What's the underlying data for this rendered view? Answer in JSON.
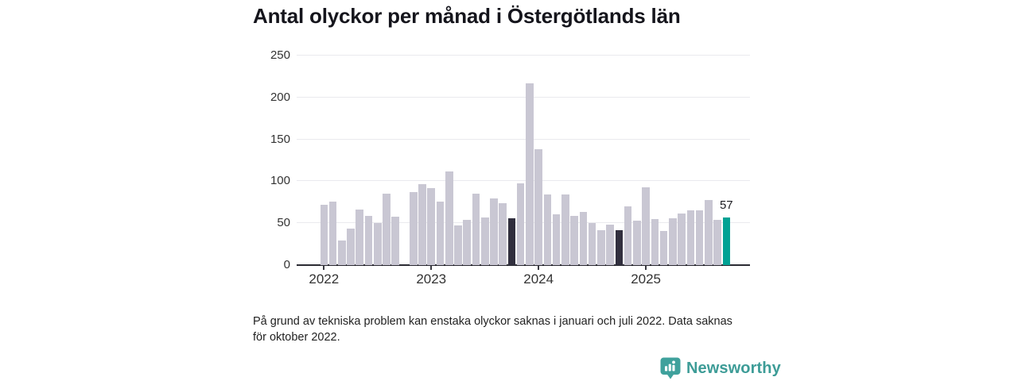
{
  "title": "Antal olyckor per månad i Östergötlands län",
  "footnote": "På grund av tekniska problem kan enstaka olyckor saknas i januari och juli 2022. Data saknas för oktober 2022.",
  "logo": {
    "text": "Newsworthy",
    "icon": "newsworthy-speech-bubble-bar-chart-icon",
    "color": "#3d9c97"
  },
  "chart_data": {
    "type": "bar",
    "title": "Antal olyckor per månad i Östergötlands län",
    "xlabel": "",
    "ylabel": "",
    "ylim": [
      0,
      250
    ],
    "y_ticks": [
      0,
      50,
      100,
      150,
      200,
      250
    ],
    "grid": "horizontal",
    "x_year_tick_labels": [
      "2022",
      "2023",
      "2024",
      "2025"
    ],
    "year_tick_slot_indexes": [
      0,
      12,
      24,
      36
    ],
    "missing_months": [
      "2022-10"
    ],
    "annotation": {
      "month": "2025-10",
      "text": "57"
    },
    "colors": {
      "light": "#c9c7d3",
      "dark": "#312f3e",
      "accent": "#00a294"
    },
    "months": [
      {
        "month": "2022-01",
        "value": 72,
        "color": "light"
      },
      {
        "month": "2022-02",
        "value": 76,
        "color": "light"
      },
      {
        "month": "2022-03",
        "value": 29,
        "color": "light"
      },
      {
        "month": "2022-04",
        "value": 44,
        "color": "light"
      },
      {
        "month": "2022-05",
        "value": 66,
        "color": "light"
      },
      {
        "month": "2022-06",
        "value": 59,
        "color": "light"
      },
      {
        "month": "2022-07",
        "value": 50,
        "color": "light"
      },
      {
        "month": "2022-08",
        "value": 85,
        "color": "light"
      },
      {
        "month": "2022-09",
        "value": 58,
        "color": "light"
      },
      {
        "month": "2022-10",
        "value": null,
        "color": "light"
      },
      {
        "month": "2022-11",
        "value": 87,
        "color": "light"
      },
      {
        "month": "2022-12",
        "value": 97,
        "color": "light"
      },
      {
        "month": "2023-01",
        "value": 92,
        "color": "light"
      },
      {
        "month": "2023-02",
        "value": 76,
        "color": "light"
      },
      {
        "month": "2023-03",
        "value": 112,
        "color": "light"
      },
      {
        "month": "2023-04",
        "value": 47,
        "color": "light"
      },
      {
        "month": "2023-05",
        "value": 54,
        "color": "light"
      },
      {
        "month": "2023-06",
        "value": 85,
        "color": "light"
      },
      {
        "month": "2023-07",
        "value": 57,
        "color": "light"
      },
      {
        "month": "2023-08",
        "value": 80,
        "color": "light"
      },
      {
        "month": "2023-09",
        "value": 74,
        "color": "light"
      },
      {
        "month": "2023-10",
        "value": 56,
        "color": "dark"
      },
      {
        "month": "2023-11",
        "value": 98,
        "color": "light"
      },
      {
        "month": "2023-12",
        "value": 217,
        "color": "light"
      },
      {
        "month": "2024-01",
        "value": 138,
        "color": "light"
      },
      {
        "month": "2024-02",
        "value": 84,
        "color": "light"
      },
      {
        "month": "2024-03",
        "value": 61,
        "color": "light"
      },
      {
        "month": "2024-04",
        "value": 84,
        "color": "light"
      },
      {
        "month": "2024-05",
        "value": 59,
        "color": "light"
      },
      {
        "month": "2024-06",
        "value": 63,
        "color": "light"
      },
      {
        "month": "2024-07",
        "value": 50,
        "color": "light"
      },
      {
        "month": "2024-08",
        "value": 42,
        "color": "light"
      },
      {
        "month": "2024-09",
        "value": 48,
        "color": "light"
      },
      {
        "month": "2024-10",
        "value": 42,
        "color": "dark"
      },
      {
        "month": "2024-11",
        "value": 70,
        "color": "light"
      },
      {
        "month": "2024-12",
        "value": 53,
        "color": "light"
      },
      {
        "month": "2025-01",
        "value": 93,
        "color": "light"
      },
      {
        "month": "2025-02",
        "value": 55,
        "color": "light"
      },
      {
        "month": "2025-03",
        "value": 41,
        "color": "light"
      },
      {
        "month": "2025-04",
        "value": 56,
        "color": "light"
      },
      {
        "month": "2025-05",
        "value": 62,
        "color": "light"
      },
      {
        "month": "2025-06",
        "value": 65,
        "color": "light"
      },
      {
        "month": "2025-07",
        "value": 65,
        "color": "light"
      },
      {
        "month": "2025-08",
        "value": 78,
        "color": "light"
      },
      {
        "month": "2025-09",
        "value": 54,
        "color": "light"
      },
      {
        "month": "2025-10",
        "value": 57,
        "color": "accent"
      }
    ]
  }
}
